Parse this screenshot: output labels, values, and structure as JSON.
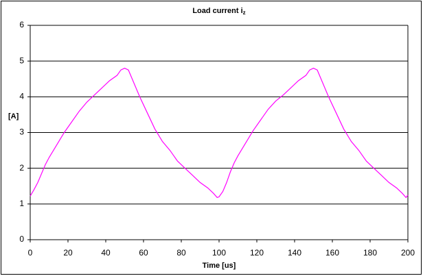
{
  "chart_data": {
    "type": "line",
    "title": "Load current i",
    "title_subscript": "z",
    "x_label": "Time [us]",
    "y_label": "[A]",
    "xlim": [
      0,
      200
    ],
    "xticks": [
      0,
      20,
      40,
      60,
      80,
      100,
      120,
      140,
      160,
      180,
      200
    ],
    "ylim": [
      0,
      6
    ],
    "yticks": [
      0,
      1,
      2,
      3,
      4,
      5,
      6
    ],
    "grid": true,
    "series": [
      {
        "name": "Load current",
        "color": "#ff00ff",
        "x": [
          0,
          2,
          4,
          6,
          8,
          10,
          14,
          18,
          22,
          26,
          30,
          34,
          38,
          42,
          46,
          48,
          50,
          52,
          54,
          58,
          62,
          66,
          70,
          74,
          78,
          82,
          86,
          90,
          94,
          97,
          99,
          100,
          102,
          104,
          106,
          108,
          110,
          114,
          118,
          122,
          126,
          130,
          134,
          138,
          142,
          146,
          148,
          150,
          152,
          154,
          158,
          162,
          166,
          170,
          174,
          178,
          182,
          186,
          190,
          194,
          197,
          199,
          200
        ],
        "values": [
          1.22,
          1.4,
          1.6,
          1.85,
          2.1,
          2.3,
          2.65,
          3.0,
          3.3,
          3.6,
          3.85,
          4.05,
          4.25,
          4.45,
          4.6,
          4.75,
          4.8,
          4.75,
          4.5,
          4.0,
          3.55,
          3.1,
          2.75,
          2.5,
          2.2,
          2.0,
          1.8,
          1.6,
          1.45,
          1.3,
          1.18,
          1.2,
          1.35,
          1.6,
          1.9,
          2.15,
          2.35,
          2.7,
          3.05,
          3.35,
          3.65,
          3.88,
          4.05,
          4.25,
          4.45,
          4.6,
          4.75,
          4.8,
          4.75,
          4.5,
          4.0,
          3.55,
          3.1,
          2.75,
          2.5,
          2.2,
          2.0,
          1.8,
          1.6,
          1.45,
          1.3,
          1.18,
          1.25
        ]
      }
    ]
  }
}
